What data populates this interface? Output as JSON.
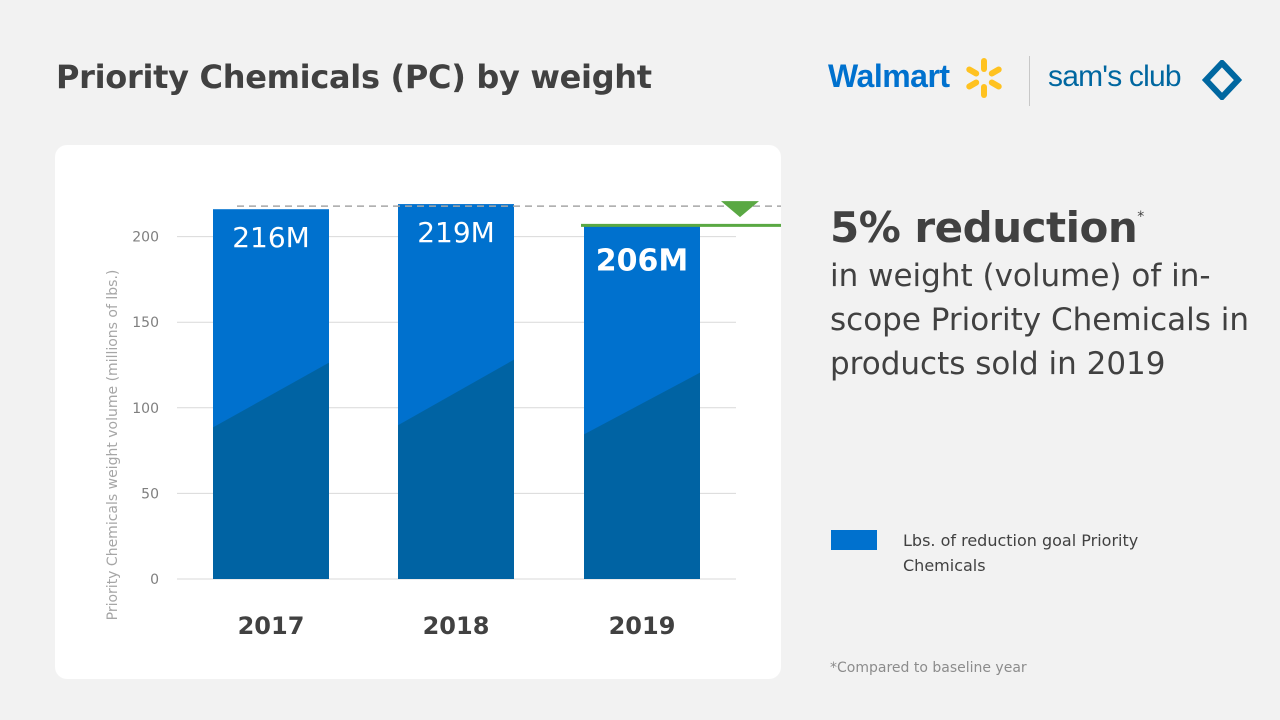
{
  "title": "Priority Chemicals (PC) by weight",
  "logos": {
    "walmart": "Walmart",
    "sams_club": "sam's club"
  },
  "colors": {
    "bar_top": "#0071ce",
    "bar_bottom": "#0063a3",
    "goal_line": "#5aa843",
    "text": "#414141",
    "grid": "#d9d9d9"
  },
  "chart_data": {
    "type": "bar",
    "categories": [
      "2017",
      "2018",
      "2019"
    ],
    "values": [
      216,
      219,
      206
    ],
    "bar_labels": [
      "216M",
      "219M",
      "206M"
    ],
    "ylabel": "Priority Chemicals weight volume (millions of lbs.)",
    "xlabel": "",
    "ylim": [
      0,
      219
    ],
    "yticks": [
      0,
      50,
      100,
      150,
      200
    ],
    "reference_line": 219,
    "goal_line": 206,
    "grid": true
  },
  "headline": {
    "big": "5% reduction",
    "marker": "*",
    "sub": "in weight (volume) of in-scope Priority Chemicals in products sold in 2019"
  },
  "legend": {
    "label": "Lbs. of reduction goal Priority Chemicals"
  },
  "footnote": "*Compared to baseline year"
}
